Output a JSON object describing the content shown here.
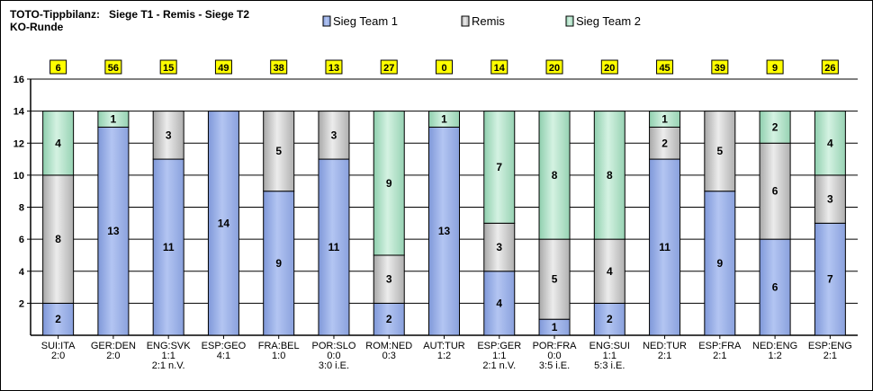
{
  "chart_data": {
    "type": "bar",
    "stacked": true,
    "title": "TOTO-Tippbilanz:   Siege T1 - Remis - Siege T2",
    "subtitle": "KO-Runde",
    "ylim": [
      0,
      16
    ],
    "yticks": [
      2,
      4,
      6,
      8,
      10,
      12,
      14,
      16
    ],
    "grid": true,
    "legend_position": "top",
    "categories": [
      [
        "SUI:ITA",
        "2:0"
      ],
      [
        "GER:DEN",
        "2:0"
      ],
      [
        "ENG:SVK",
        "1:1",
        "2:1 n.V."
      ],
      [
        "ESP:GEO",
        "4:1"
      ],
      [
        "FRA:BEL",
        "1:0"
      ],
      [
        "POR:SLO",
        "0:0",
        "3:0 i.E."
      ],
      [
        "ROM:NED",
        "0:3"
      ],
      [
        "AUT:TUR",
        "1:2"
      ],
      [
        "ESP:GER",
        "1:1",
        "2:1 n.V."
      ],
      [
        "POR:FRA",
        "0:0",
        "3:5 i.E."
      ],
      [
        "ENG:SUI",
        "1:1",
        "5:3 i.E."
      ],
      [
        "NED:TUR",
        "2:1"
      ],
      [
        "ESP:FRA",
        "2:1"
      ],
      [
        "NED:ENG",
        "1:2"
      ],
      [
        "ESP:ENG",
        "2:1"
      ]
    ],
    "points": [
      "6",
      "56",
      "15",
      "49",
      "38",
      "13",
      "27",
      "0",
      "14",
      "20",
      "20",
      "45",
      "39",
      "9",
      "26"
    ],
    "series": [
      {
        "name": "Sieg Team 1",
        "color": "#a3b8ec",
        "values": [
          2,
          13,
          11,
          14,
          9,
          11,
          2,
          13,
          4,
          1,
          2,
          11,
          9,
          6,
          7
        ]
      },
      {
        "name": "Remis",
        "color": "#d2d2d2",
        "values": [
          8,
          0,
          3,
          0,
          5,
          3,
          3,
          0,
          3,
          5,
          4,
          2,
          5,
          6,
          3
        ]
      },
      {
        "name": "Sieg Team 2",
        "color": "#b9e4cc",
        "values": [
          4,
          1,
          0,
          0,
          0,
          0,
          9,
          1,
          7,
          8,
          8,
          1,
          0,
          2,
          4
        ]
      }
    ],
    "points_box_color": "#ffff00"
  }
}
